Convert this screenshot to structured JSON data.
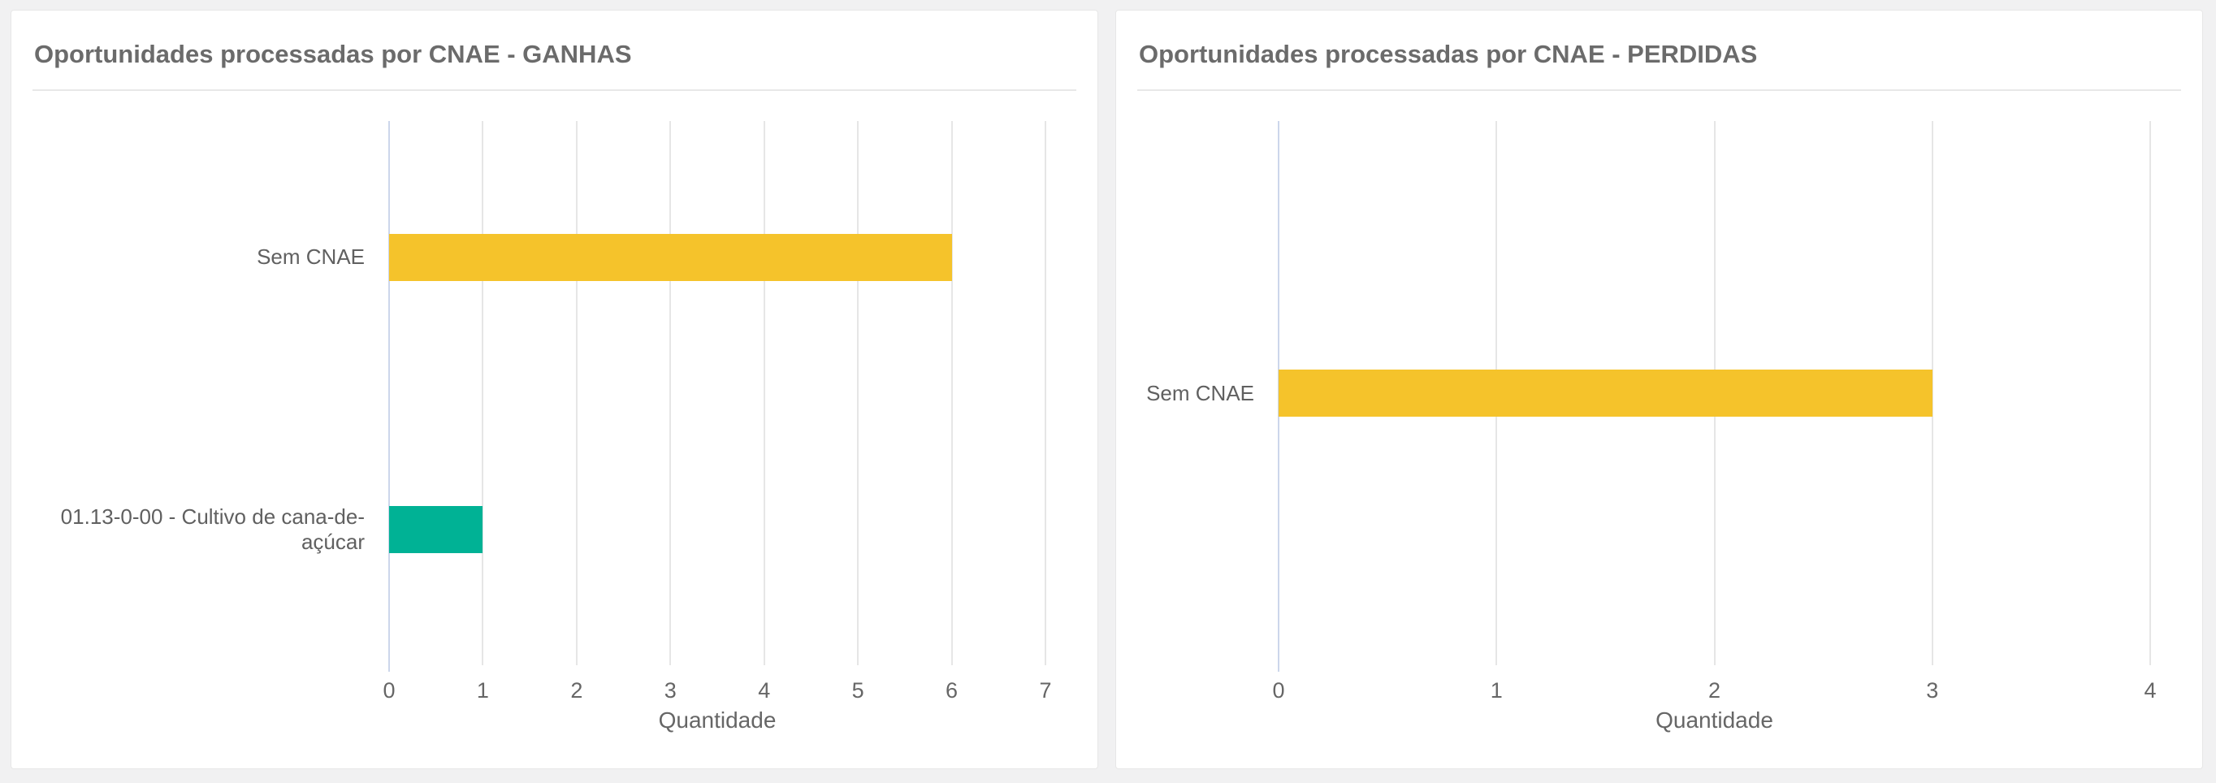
{
  "page": {
    "background_color": "#f1f1f2",
    "card_color": "#ffffff"
  },
  "chart_data": [
    {
      "type": "bar",
      "orientation": "horizontal",
      "title": "Oportunidades processadas por CNAE - GANHAS",
      "categories": [
        "Sem CNAE",
        "01.13-0-00 - Cultivo de cana-de-açúcar"
      ],
      "values": [
        6,
        1
      ],
      "bar_colors": [
        "#f5c32b",
        "#00b295"
      ],
      "xlabel": "Quantidade",
      "xlim": [
        0,
        7
      ],
      "xticks": [
        0,
        1,
        2,
        3,
        4,
        5,
        6,
        7
      ],
      "grid": true,
      "legend": "none",
      "axis_line_color": "#ccd6eb",
      "gridline_color": "#e6e6e6"
    },
    {
      "type": "bar",
      "orientation": "horizontal",
      "title": "Oportunidades processadas por CNAE - PERDIDAS",
      "categories": [
        "Sem CNAE"
      ],
      "values": [
        3
      ],
      "bar_colors": [
        "#f5c32b"
      ],
      "xlabel": "Quantidade",
      "xlim": [
        0,
        4
      ],
      "xticks": [
        0,
        1,
        2,
        3,
        4
      ],
      "grid": true,
      "legend": "none",
      "axis_line_color": "#ccd6eb",
      "gridline_color": "#e6e6e6"
    }
  ]
}
